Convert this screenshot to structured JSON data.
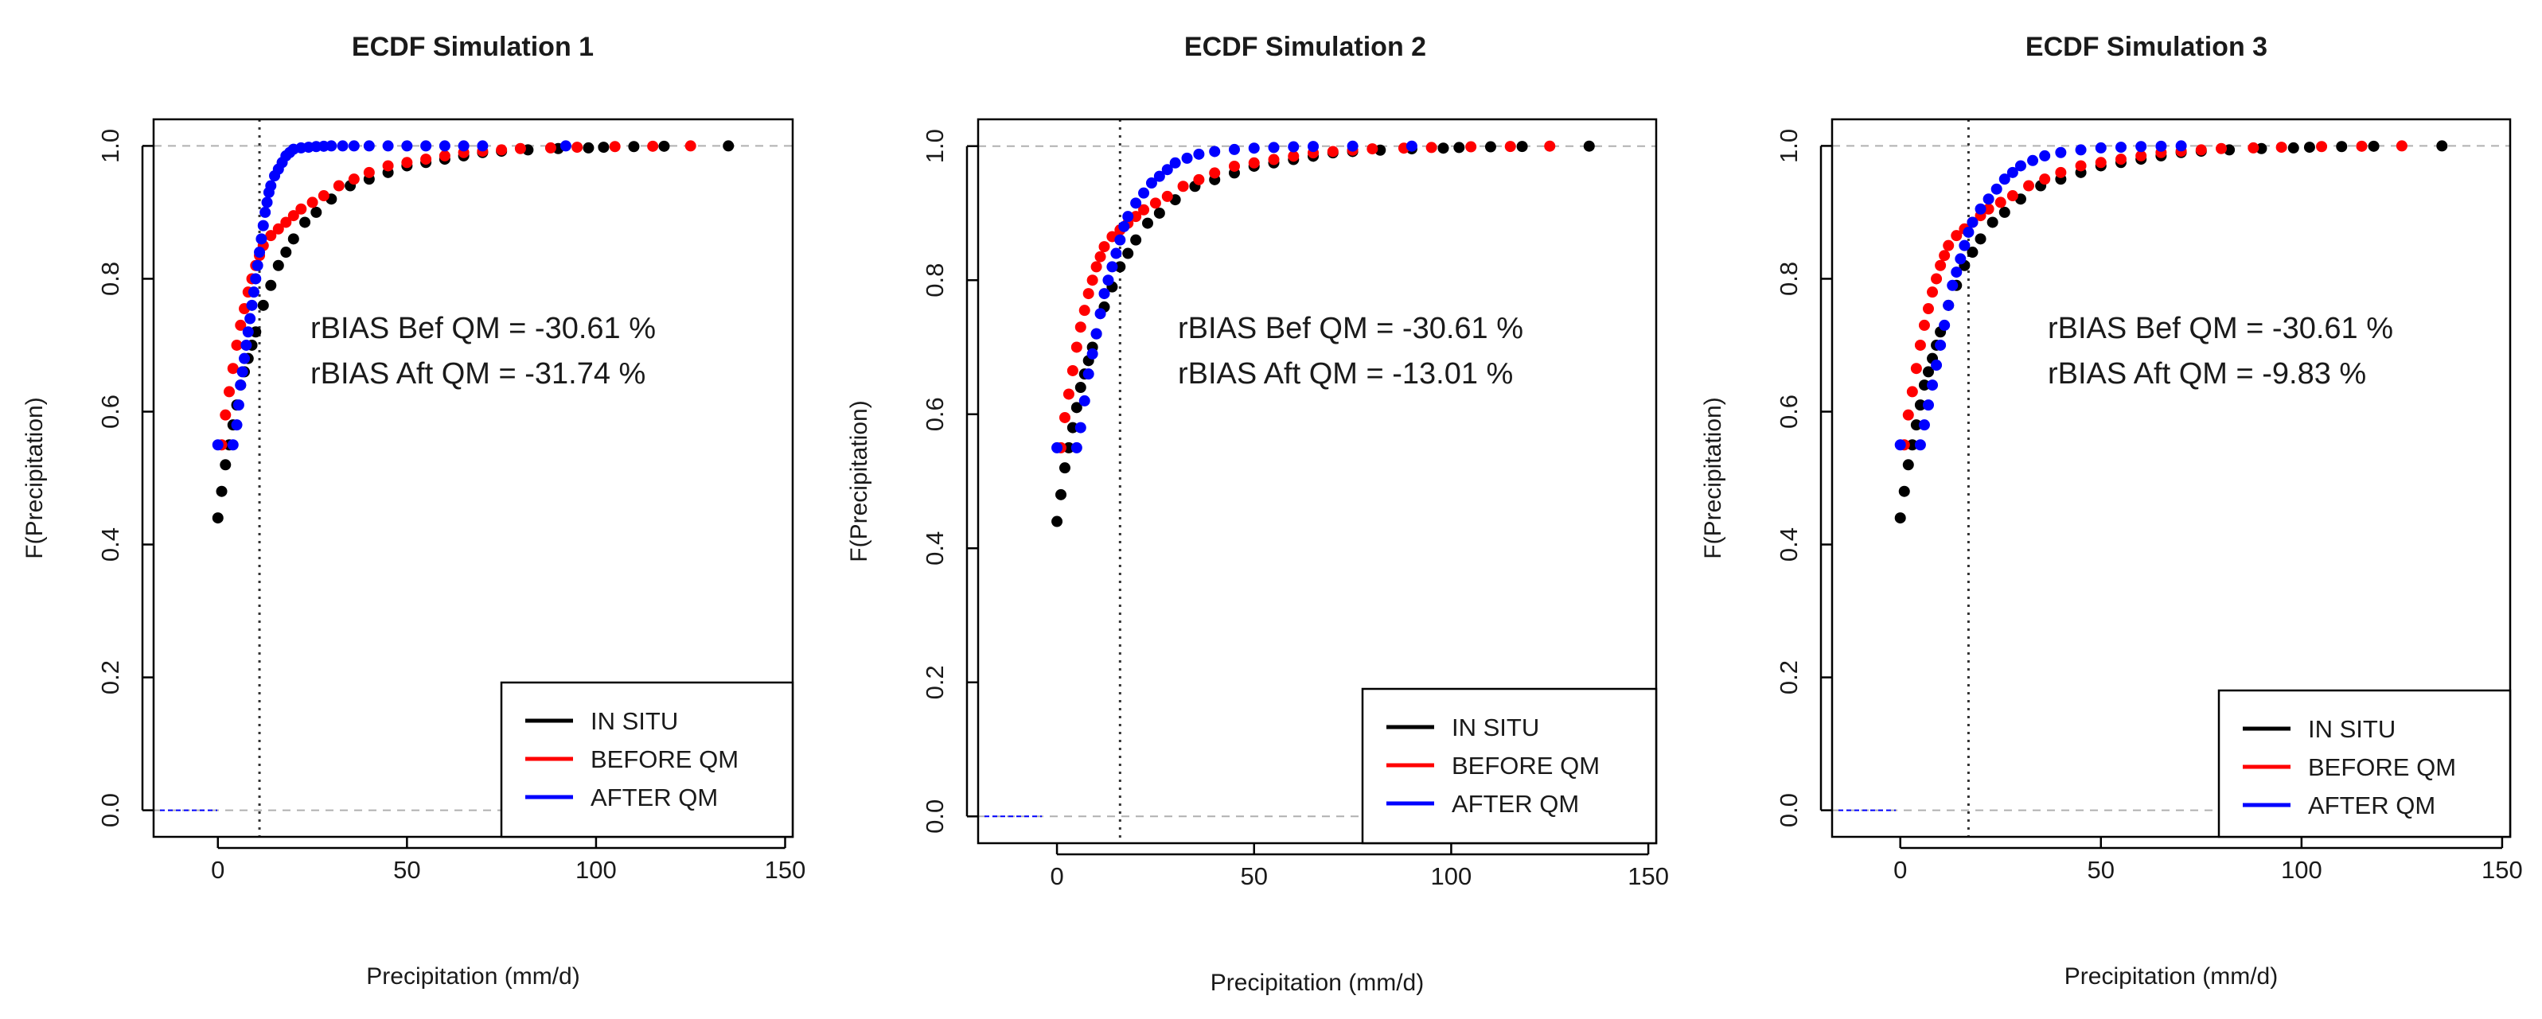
{
  "figure": {
    "description_panels": 3
  },
  "chart_data": [
    {
      "type": "scatter",
      "title": "ECDF Simulation 1",
      "xlabel": "Precipitation (mm/d)",
      "ylabel": "F(Precipitation)",
      "xlim": [
        -17,
        152
      ],
      "ylim": [
        -0.04,
        1.04
      ],
      "xticks": [
        0,
        50,
        100,
        150
      ],
      "yticks": [
        0.0,
        0.2,
        0.4,
        0.6,
        0.8,
        1.0
      ],
      "ytick_labels": [
        "0.0",
        "0.2",
        "0.4",
        "0.6",
        "0.8",
        "1.0"
      ],
      "threshold_x": 11,
      "reference_lines_y": [
        0.0,
        1.0
      ],
      "annotations": [
        "rBIAS Bef QM = -30.61 %",
        "rBIAS Aft QM = -31.74 %"
      ],
      "legend": {
        "position": "bottom-right",
        "entries": [
          "IN SITU",
          "BEFORE QM",
          "AFTER QM"
        ]
      },
      "series": [
        {
          "name": "IN SITU",
          "color": "#000000",
          "x": [
            0,
            1,
            2,
            3,
            4,
            5,
            6,
            7,
            8,
            9,
            10,
            12,
            14,
            16,
            18,
            20,
            23,
            26,
            30,
            35,
            40,
            45,
            50,
            55,
            60,
            65,
            70,
            75,
            82,
            90,
            98,
            102,
            110,
            118,
            135
          ],
          "y": [
            0.44,
            0.48,
            0.52,
            0.55,
            0.58,
            0.61,
            0.64,
            0.66,
            0.68,
            0.7,
            0.72,
            0.76,
            0.79,
            0.82,
            0.84,
            0.86,
            0.885,
            0.9,
            0.92,
            0.94,
            0.95,
            0.96,
            0.97,
            0.975,
            0.98,
            0.985,
            0.99,
            0.992,
            0.994,
            0.996,
            0.997,
            0.998,
            0.999,
            0.9995,
            1.0
          ]
        },
        {
          "name": "BEFORE QM",
          "color": "#ff0000",
          "x": [
            1,
            2,
            3,
            4,
            5,
            6,
            7,
            8,
            9,
            10,
            11,
            12,
            14,
            16,
            18,
            20,
            22,
            25,
            28,
            32,
            36,
            40,
            45,
            50,
            55,
            60,
            65,
            70,
            75,
            80,
            88,
            95,
            105,
            115,
            125
          ],
          "y": [
            0.55,
            0.595,
            0.63,
            0.665,
            0.7,
            0.73,
            0.755,
            0.78,
            0.8,
            0.82,
            0.835,
            0.85,
            0.865,
            0.875,
            0.885,
            0.895,
            0.905,
            0.915,
            0.925,
            0.94,
            0.95,
            0.96,
            0.97,
            0.975,
            0.98,
            0.985,
            0.99,
            0.992,
            0.994,
            0.996,
            0.997,
            0.998,
            0.999,
            0.9995,
            1.0
          ]
        },
        {
          "name": "AFTER QM",
          "color": "#0000ff",
          "x": [
            0,
            4,
            5,
            5.5,
            6,
            6.5,
            7,
            7.5,
            8,
            8.5,
            9,
            9.5,
            10,
            10.5,
            11,
            11.5,
            12,
            12.5,
            13,
            13.5,
            14,
            15,
            16,
            17,
            18,
            19,
            20,
            22,
            24,
            26,
            28,
            30,
            33,
            36,
            40,
            45,
            50,
            55,
            60,
            65,
            70,
            92
          ],
          "y": [
            0.55,
            0.55,
            0.58,
            0.61,
            0.64,
            0.66,
            0.68,
            0.7,
            0.72,
            0.74,
            0.76,
            0.78,
            0.8,
            0.82,
            0.84,
            0.86,
            0.88,
            0.9,
            0.915,
            0.93,
            0.94,
            0.955,
            0.965,
            0.975,
            0.985,
            0.99,
            0.995,
            0.997,
            0.998,
            0.999,
            0.9995,
            1.0,
            1.0,
            1.0,
            1.0,
            1.0,
            1.0,
            1.0,
            1.0,
            1.0,
            1.0,
            1.0
          ]
        }
      ]
    },
    {
      "type": "scatter",
      "title": "ECDF Simulation 2",
      "xlabel": "Precipitation (mm/d)",
      "ylabel": "F(Precipitation)",
      "xlim": [
        -20,
        152
      ],
      "ylim": [
        -0.04,
        1.04
      ],
      "xticks": [
        0,
        50,
        100,
        150
      ],
      "yticks": [
        0.0,
        0.2,
        0.4,
        0.6,
        0.8,
        1.0
      ],
      "ytick_labels": [
        "0.0",
        "0.2",
        "0.4",
        "0.6",
        "0.8",
        "1.0"
      ],
      "threshold_x": 16,
      "reference_lines_y": [
        0.0,
        1.0
      ],
      "annotations": [
        "rBIAS Bef QM = -30.61 %",
        "rBIAS Aft QM = -13.01 %"
      ],
      "legend": {
        "position": "bottom-right",
        "entries": [
          "IN SITU",
          "BEFORE QM",
          "AFTER QM"
        ]
      },
      "series": [
        {
          "name": "IN SITU",
          "color": "#000000",
          "x": [
            0,
            1,
            2,
            3,
            4,
            5,
            6,
            7,
            8,
            9,
            10,
            12,
            14,
            16,
            18,
            20,
            23,
            26,
            30,
            35,
            40,
            45,
            50,
            55,
            60,
            65,
            70,
            75,
            82,
            90,
            98,
            102,
            110,
            118,
            135
          ],
          "y": [
            0.44,
            0.48,
            0.52,
            0.55,
            0.58,
            0.61,
            0.64,
            0.66,
            0.68,
            0.7,
            0.72,
            0.76,
            0.79,
            0.82,
            0.84,
            0.86,
            0.885,
            0.9,
            0.92,
            0.94,
            0.95,
            0.96,
            0.97,
            0.975,
            0.98,
            0.985,
            0.99,
            0.992,
            0.994,
            0.996,
            0.997,
            0.998,
            0.999,
            0.9995,
            1.0
          ]
        },
        {
          "name": "BEFORE QM",
          "color": "#ff0000",
          "x": [
            1,
            2,
            3,
            4,
            5,
            6,
            7,
            8,
            9,
            10,
            11,
            12,
            14,
            16,
            18,
            20,
            22,
            25,
            28,
            32,
            36,
            40,
            45,
            50,
            55,
            60,
            65,
            70,
            75,
            80,
            88,
            95,
            105,
            115,
            125
          ],
          "y": [
            0.55,
            0.595,
            0.63,
            0.665,
            0.7,
            0.73,
            0.755,
            0.78,
            0.8,
            0.82,
            0.835,
            0.85,
            0.865,
            0.875,
            0.885,
            0.895,
            0.905,
            0.915,
            0.925,
            0.94,
            0.95,
            0.96,
            0.97,
            0.975,
            0.98,
            0.985,
            0.99,
            0.992,
            0.994,
            0.996,
            0.997,
            0.998,
            0.999,
            0.9995,
            1.0
          ]
        },
        {
          "name": "AFTER QM",
          "color": "#0000ff",
          "x": [
            0,
            5,
            6,
            7,
            8,
            9,
            10,
            11,
            12,
            13,
            14,
            15,
            16,
            17,
            18,
            20,
            22,
            24,
            26,
            28,
            30,
            33,
            36,
            40,
            45,
            50,
            55,
            60,
            65,
            75,
            90
          ],
          "y": [
            0.55,
            0.55,
            0.58,
            0.62,
            0.66,
            0.69,
            0.72,
            0.75,
            0.78,
            0.8,
            0.82,
            0.84,
            0.86,
            0.88,
            0.895,
            0.915,
            0.93,
            0.945,
            0.955,
            0.965,
            0.975,
            0.982,
            0.988,
            0.992,
            0.995,
            0.997,
            0.998,
            0.999,
            0.9995,
            1.0,
            1.0
          ]
        }
      ]
    },
    {
      "type": "scatter",
      "title": "ECDF Simulation 3",
      "xlabel": "Precipitation (mm/d)",
      "ylabel": "F(Precipitation)",
      "xlim": [
        -17,
        152
      ],
      "ylim": [
        -0.04,
        1.04
      ],
      "xticks": [
        0,
        50,
        100,
        150
      ],
      "yticks": [
        0.0,
        0.2,
        0.4,
        0.6,
        0.8,
        1.0
      ],
      "ytick_labels": [
        "0.0",
        "0.2",
        "0.4",
        "0.6",
        "0.8",
        "1.0"
      ],
      "threshold_x": 17,
      "reference_lines_y": [
        0.0,
        1.0
      ],
      "annotations": [
        "rBIAS Bef QM = -30.61 %",
        "rBIAS Aft QM = -9.83 %"
      ],
      "legend": {
        "position": "bottom-right",
        "entries": [
          "IN SITU",
          "BEFORE QM",
          "AFTER QM"
        ]
      },
      "series": [
        {
          "name": "IN SITU",
          "color": "#000000",
          "x": [
            0,
            1,
            2,
            3,
            4,
            5,
            6,
            7,
            8,
            9,
            10,
            12,
            14,
            16,
            18,
            20,
            23,
            26,
            30,
            35,
            40,
            45,
            50,
            55,
            60,
            65,
            70,
            75,
            82,
            90,
            98,
            102,
            110,
            118,
            135
          ],
          "y": [
            0.44,
            0.48,
            0.52,
            0.55,
            0.58,
            0.61,
            0.64,
            0.66,
            0.68,
            0.7,
            0.72,
            0.76,
            0.79,
            0.82,
            0.84,
            0.86,
            0.885,
            0.9,
            0.92,
            0.94,
            0.95,
            0.96,
            0.97,
            0.975,
            0.98,
            0.985,
            0.99,
            0.992,
            0.994,
            0.996,
            0.997,
            0.998,
            0.999,
            0.9995,
            1.0
          ]
        },
        {
          "name": "BEFORE QM",
          "color": "#ff0000",
          "x": [
            1,
            2,
            3,
            4,
            5,
            6,
            7,
            8,
            9,
            10,
            11,
            12,
            14,
            16,
            18,
            20,
            22,
            25,
            28,
            32,
            36,
            40,
            45,
            50,
            55,
            60,
            65,
            70,
            75,
            80,
            88,
            95,
            105,
            115,
            125
          ],
          "y": [
            0.55,
            0.595,
            0.63,
            0.665,
            0.7,
            0.73,
            0.755,
            0.78,
            0.8,
            0.82,
            0.835,
            0.85,
            0.865,
            0.875,
            0.885,
            0.895,
            0.905,
            0.915,
            0.925,
            0.94,
            0.95,
            0.96,
            0.97,
            0.975,
            0.98,
            0.985,
            0.99,
            0.992,
            0.994,
            0.996,
            0.997,
            0.998,
            0.999,
            0.9995,
            1.0
          ]
        },
        {
          "name": "AFTER QM",
          "color": "#0000ff",
          "x": [
            0,
            5,
            6,
            7,
            8,
            9,
            10,
            11,
            12,
            13,
            14,
            15,
            16,
            17,
            18,
            20,
            22,
            24,
            26,
            28,
            30,
            33,
            36,
            40,
            45,
            50,
            55,
            60,
            65,
            70
          ],
          "y": [
            0.55,
            0.55,
            0.58,
            0.61,
            0.64,
            0.67,
            0.7,
            0.73,
            0.76,
            0.79,
            0.81,
            0.83,
            0.85,
            0.87,
            0.885,
            0.905,
            0.92,
            0.935,
            0.95,
            0.96,
            0.97,
            0.978,
            0.985,
            0.99,
            0.994,
            0.997,
            0.998,
            0.999,
            0.9995,
            1.0
          ]
        }
      ]
    }
  ]
}
